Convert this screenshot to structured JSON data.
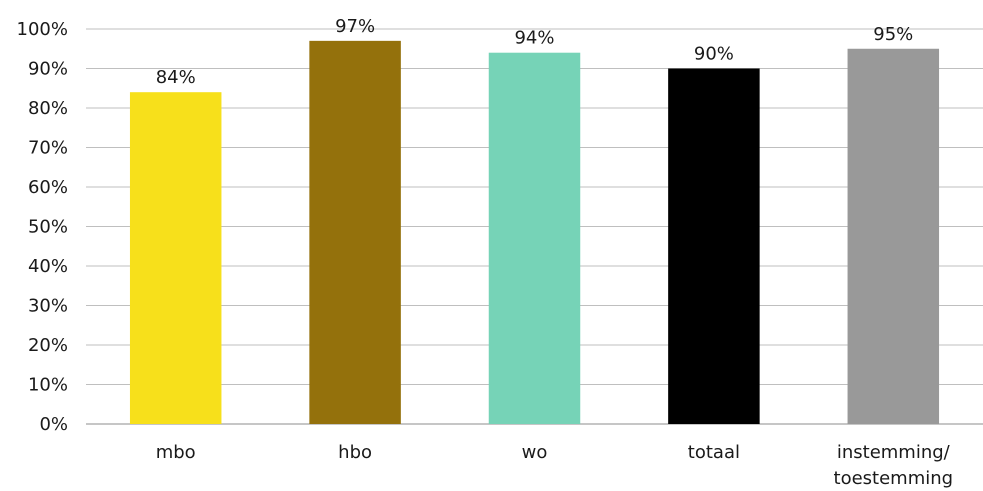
{
  "chart_data": {
    "type": "bar",
    "title": "",
    "xlabel": "",
    "ylabel": "",
    "categories": [
      "mbo",
      "hbo",
      "wo",
      "totaal",
      "instemming/ toestemming"
    ],
    "values": [
      84,
      97,
      94,
      90,
      95
    ],
    "data_labels": [
      "84%",
      "97%",
      "94%",
      "90%",
      "95%"
    ],
    "colors": [
      "#F7E01B",
      "#94710C",
      "#76D3B7",
      "#000000",
      "#999999"
    ],
    "ylim": [
      0,
      100
    ],
    "y_ticks": [
      0,
      10,
      20,
      30,
      40,
      50,
      60,
      70,
      80,
      90,
      100
    ],
    "y_tick_labels": [
      "0%",
      "10%",
      "20%",
      "30%",
      "40%",
      "50%",
      "60%",
      "70%",
      "80%",
      "90%",
      "100%"
    ],
    "grid": true,
    "legend": "none"
  }
}
